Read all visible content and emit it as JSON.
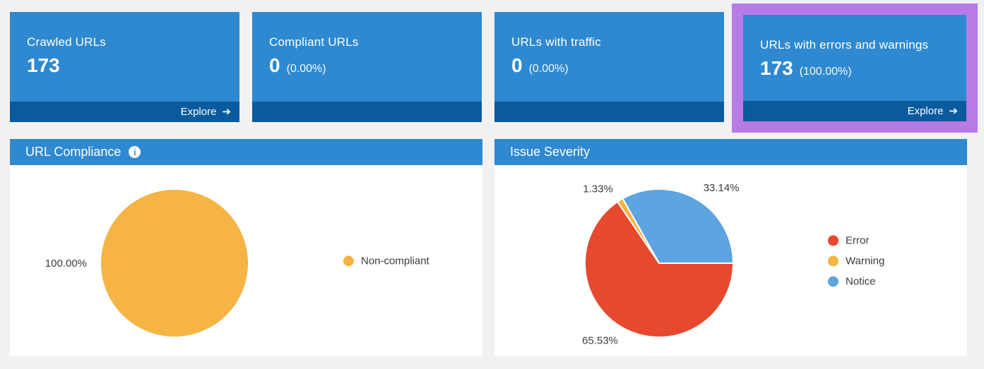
{
  "colors": {
    "accent_blue": "#2E89D1",
    "footer_dark_blue": "#0A5A9E",
    "highlight_purple": "#B87BE5",
    "page_background": "#F1F1F1",
    "panel_background": "#FFFFFF",
    "error_red": "#E7492E",
    "warning_orange": "#F5B443",
    "notice_blue": "#5CA5E0"
  },
  "icons": {
    "arrow_right": "➔",
    "info": "i"
  },
  "cards": [
    {
      "title": "Crawled URLs",
      "value": "173",
      "percent": "",
      "explore_label": "Explore",
      "highlighted": false
    },
    {
      "title": "Compliant URLs",
      "value": "0",
      "percent": "(0.00%)",
      "highlighted": false
    },
    {
      "title": "URLs with traffic",
      "value": "0",
      "percent": "(0.00%)",
      "highlighted": false
    },
    {
      "title": "URLs with errors and warnings",
      "value": "173",
      "percent": "(100.00%)",
      "explore_label": "Explore",
      "highlighted": true
    }
  ],
  "panels": [
    {
      "title": "URL Compliance",
      "has_info_icon": true
    },
    {
      "title": "Issue Severity",
      "has_info_icon": false
    }
  ],
  "chart_data": [
    {
      "type": "pie",
      "title": "URL Compliance",
      "slices": [
        {
          "label": "Non-compliant",
          "value": 100.0,
          "display": "100.00%",
          "color": "#F5B443"
        }
      ],
      "legend_position": "right",
      "start_angle_deg": 0,
      "direction": "clockwise"
    },
    {
      "type": "pie",
      "title": "Issue Severity",
      "slices": [
        {
          "label": "Error",
          "value": 65.53,
          "display": "65.53%",
          "color": "#E7492E"
        },
        {
          "label": "Warning",
          "value": 1.33,
          "display": "1.33%",
          "color": "#F5B443"
        },
        {
          "label": "Notice",
          "value": 33.14,
          "display": "33.14%",
          "color": "#5CA5E0"
        }
      ],
      "legend_position": "right",
      "start_angle_deg": 0,
      "direction": "clockwise"
    }
  ]
}
